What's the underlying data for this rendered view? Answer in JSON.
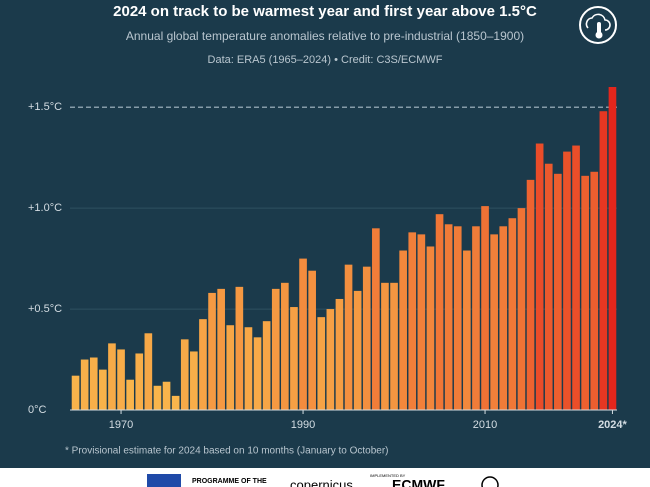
{
  "chart_data": {
    "type": "bar",
    "title": "2024 on track to be warmest year and first year above 1.5°C",
    "subtitle": "Annual global temperature anomalies relative to pre-industrial (1850–1900)",
    "source": "Data: ERA5 (1965–2024)  •  Credit: C3S/ECMWF",
    "footnote": "* Provisional estimate for 2024 based on 10 months (January to October)",
    "categories": [
      null,
      null,
      null,
      null,
      null,
      "1970",
      null,
      null,
      null,
      null,
      null,
      null,
      null,
      null,
      null,
      null,
      null,
      null,
      null,
      null,
      null,
      null,
      null,
      null,
      null,
      "1990",
      null,
      null,
      null,
      null,
      null,
      null,
      null,
      null,
      null,
      null,
      null,
      null,
      null,
      null,
      null,
      null,
      null,
      null,
      null,
      "2010",
      null,
      null,
      null,
      null,
      null,
      null,
      null,
      null,
      null,
      null,
      null,
      null,
      null,
      "2024*"
    ],
    "values": [
      0.17,
      0.25,
      0.26,
      0.2,
      0.33,
      0.3,
      0.15,
      0.28,
      0.38,
      0.12,
      0.14,
      0.07,
      0.35,
      0.29,
      0.45,
      0.58,
      0.6,
      0.42,
      0.61,
      0.41,
      0.36,
      0.44,
      0.6,
      0.63,
      0.51,
      0.75,
      0.69,
      0.46,
      0.5,
      0.55,
      0.72,
      0.59,
      0.71,
      0.9,
      0.63,
      0.63,
      0.79,
      0.88,
      0.87,
      0.81,
      0.97,
      0.92,
      0.91,
      0.79,
      0.91,
      1.01,
      0.87,
      0.91,
      0.95,
      1.0,
      1.14,
      1.32,
      1.22,
      1.17,
      1.28,
      1.31,
      1.16,
      1.18,
      1.48,
      1.6
    ],
    "color_low": "#f9b74c",
    "color_high": "#e4261c",
    "ylim": [
      0,
      1.6
    ],
    "yticks": [
      {
        "value": 0,
        "label": "0°C"
      },
      {
        "value": 0.5,
        "label": "+0.5°C"
      },
      {
        "value": 1.0,
        "label": "+1.0°C"
      },
      {
        "value": 1.5,
        "label": "+1.5°C"
      }
    ],
    "threshold": 1.5,
    "grid": true,
    "footer": {
      "programme": "PROGRAMME OF THE",
      "implemented": "IMPLEMENTED BY",
      "ecmwf": "ECMWF",
      "copernicus": "copernicus"
    }
  }
}
